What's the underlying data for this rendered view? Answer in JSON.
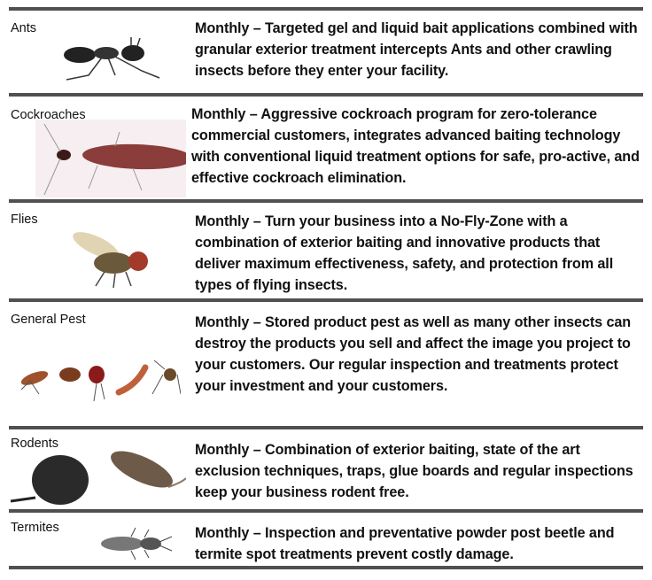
{
  "rows": [
    {
      "label": "Ants",
      "icon": "ant-icon",
      "description": "Monthly – Targeted gel and liquid bait applications combined with granular exterior treatment intercepts Ants and other crawling insects before they enter your facility."
    },
    {
      "label": "Cockroaches",
      "icon": "cockroach-icon",
      "description": "Monthly – Aggressive cockroach program for zero-tolerance commercial customers, integrates advanced baiting technology with conventional liquid treatment options for safe, pro-active, and effective cockroach elimination."
    },
    {
      "label": "Flies",
      "icon": "fly-icon",
      "description": "Monthly – Turn your business into a No-Fly-Zone with a combination of exterior baiting and innovative products that deliver maximum effectiveness, safety, and protection from all types of flying insects."
    },
    {
      "label": "General Pest",
      "icon": "general-pests-icon",
      "description": "Monthly – Stored product pest as well as many other insects can destroy the products you sell and affect the image you project to your customers. Our regular inspection and treatments protect your investment and your customers."
    },
    {
      "label": "Rodents",
      "icon": "rodents-icon",
      "description": "Monthly – Combination of exterior baiting, state of the art exclusion techniques, traps, glue boards and regular inspections keep your business rodent free."
    },
    {
      "label": "Termites",
      "icon": "termite-icon",
      "description": "Monthly – Inspection and preventative powder post beetle and termite spot treatments prevent costly damage."
    }
  ],
  "colors": {
    "rule": "#505050",
    "text": "#111111"
  }
}
